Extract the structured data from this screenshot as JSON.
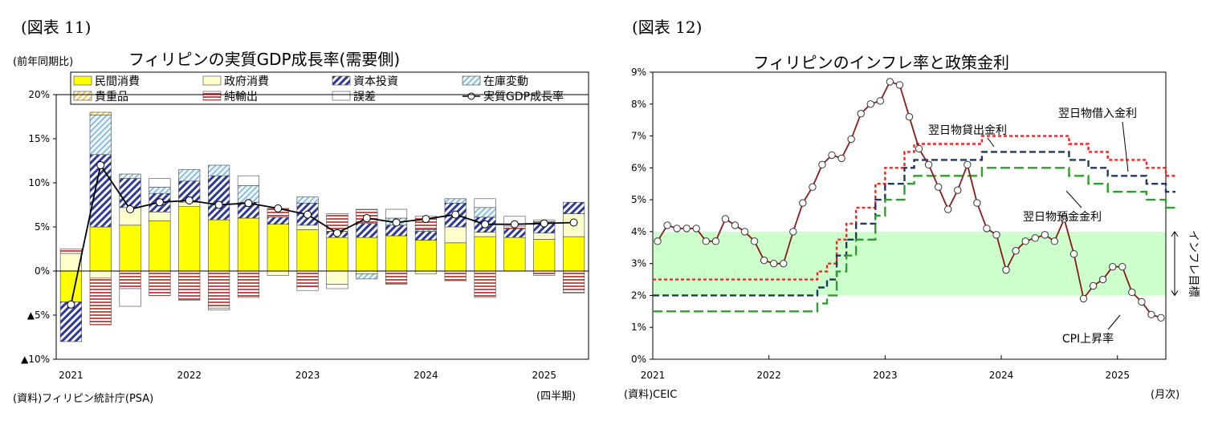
{
  "chart_data": [
    {
      "type": "bar",
      "figure_label": "(図表 11)",
      "title": "フィリピンの実質GDP成長率(需要側)",
      "ylabel": "(前年同期比)",
      "xlabel": "(四半期)",
      "source": "(資料)フィリピン統計庁(PSA)",
      "ylim": [
        -10,
        20
      ],
      "yticks": [
        {
          "v": 20,
          "label": "20%"
        },
        {
          "v": 15,
          "label": "15%"
        },
        {
          "v": 10,
          "label": "10%"
        },
        {
          "v": 5,
          "label": "5%"
        },
        {
          "v": 0,
          "label": "0%"
        },
        {
          "v": -5,
          "label": "▲5%"
        },
        {
          "v": -10,
          "label": "▲10%"
        }
      ],
      "xtick_labels": [
        {
          "i": 0,
          "label": "2021"
        },
        {
          "i": 4,
          "label": "2022"
        },
        {
          "i": 8,
          "label": "2023"
        },
        {
          "i": 12,
          "label": "2024"
        },
        {
          "i": 16,
          "label": "2025"
        }
      ],
      "categories": [
        "2021Q1",
        "2021Q2",
        "2021Q3",
        "2021Q4",
        "2022Q1",
        "2022Q2",
        "2022Q3",
        "2022Q4",
        "2023Q1",
        "2023Q2",
        "2023Q3",
        "2023Q4",
        "2024Q1",
        "2024Q2",
        "2024Q3",
        "2024Q4",
        "2025Q1",
        "2025Q2"
      ],
      "series": [
        {
          "name": "民間消費",
          "color": "#ffff00",
          "pattern": "solid",
          "values": [
            -3.5,
            5.0,
            5.2,
            5.7,
            7.3,
            5.8,
            6.0,
            5.3,
            4.7,
            3.8,
            3.8,
            4.0,
            3.5,
            3.2,
            3.9,
            3.8,
            3.6,
            3.9
          ]
        },
        {
          "name": "政府消費",
          "color": "#ffffcc",
          "pattern": "solid",
          "values": [
            2.0,
            -0.8,
            2.0,
            1.0,
            0.5,
            0.0,
            0.0,
            -0.5,
            0.5,
            -1.5,
            -0.3,
            0.0,
            -0.3,
            1.8,
            0.5,
            0.0,
            0.7,
            2.6
          ]
        },
        {
          "name": "資本投資",
          "color": "#2e3a99",
          "pattern": "diag",
          "values": [
            -4.5,
            8.2,
            3.3,
            2.1,
            2.4,
            5.0,
            1.8,
            0.8,
            2.5,
            0.7,
            1.6,
            1.2,
            1.0,
            2.7,
            1.7,
            1.0,
            1.2,
            1.3
          ]
        },
        {
          "name": "在庫変動",
          "color": "#7fb2d0",
          "pattern": "diag2",
          "values": [
            0.0,
            4.5,
            0.5,
            0.7,
            1.3,
            1.2,
            1.9,
            0.0,
            0.7,
            0.0,
            -0.6,
            0.8,
            0.2,
            0.5,
            1.1,
            0.0,
            0.1,
            0.0
          ]
        },
        {
          "name": "貴重品",
          "color": "#f2c84b",
          "pattern": "diag3",
          "values": [
            0.0,
            0.3,
            0.0,
            0.0,
            0.0,
            0.0,
            0.0,
            0.0,
            0.0,
            0.0,
            0.0,
            0.0,
            0.0,
            0.0,
            0.0,
            0.0,
            0.0,
            0.0
          ]
        },
        {
          "name": "純輸出",
          "color": "#c0504d",
          "pattern": "hstripe",
          "values": [
            0.5,
            -5.3,
            -2.0,
            -2.8,
            -3.3,
            -4.2,
            -3.0,
            1.0,
            -1.8,
            2.0,
            1.6,
            -1.5,
            1.5,
            -1.1,
            -3.0,
            0.3,
            -0.5,
            -2.4
          ]
        },
        {
          "name": "誤差",
          "color": "#ffffff",
          "pattern": "solid",
          "values": [
            0.0,
            0.0,
            -2.0,
            1.0,
            0.0,
            -0.2,
            1.1,
            0.0,
            -0.4,
            -0.5,
            0.0,
            1.0,
            0.0,
            0.0,
            1.0,
            1.1,
            0.2,
            -0.1
          ]
        }
      ],
      "line": {
        "name": "実質GDP成長率",
        "values": [
          -3.8,
          12.0,
          7.0,
          7.8,
          8.0,
          7.5,
          7.7,
          7.1,
          6.4,
          4.3,
          6.0,
          5.5,
          5.9,
          6.4,
          5.3,
          5.3,
          5.4,
          5.5
        ]
      }
    },
    {
      "type": "line",
      "figure_label": "(図表 12)",
      "title": "フィリピンのインフレ率と政策金利",
      "xlabel": "(月次)",
      "source": "(資料)CEIC",
      "ylim": [
        0,
        9
      ],
      "yticks": [
        {
          "v": 0,
          "label": "0%"
        },
        {
          "v": 1,
          "label": "1%"
        },
        {
          "v": 2,
          "label": "2%"
        },
        {
          "v": 3,
          "label": "3%"
        },
        {
          "v": 4,
          "label": "4%"
        },
        {
          "v": 5,
          "label": "5%"
        },
        {
          "v": 6,
          "label": "6%"
        },
        {
          "v": 7,
          "label": "7%"
        },
        {
          "v": 8,
          "label": "8%"
        },
        {
          "v": 9,
          "label": "9%"
        }
      ],
      "xtick_labels": [
        {
          "i": 0,
          "label": "2021"
        },
        {
          "i": 12,
          "label": "2022"
        },
        {
          "i": 24,
          "label": "2023"
        },
        {
          "i": 36,
          "label": "2024"
        },
        {
          "i": 48,
          "label": "2025"
        }
      ],
      "target_band": {
        "range": [
          2,
          4
        ],
        "label": "インフレ目標",
        "color": "#ccffcc"
      },
      "cpi": {
        "name": "CPI上昇率",
        "color": "#8b1a1a",
        "values": [
          3.7,
          4.2,
          4.1,
          4.1,
          4.1,
          3.7,
          3.7,
          4.4,
          4.2,
          4.0,
          3.7,
          3.1,
          3.0,
          3.0,
          4.0,
          4.9,
          5.4,
          6.1,
          6.4,
          6.3,
          6.9,
          7.7,
          8.0,
          8.1,
          8.7,
          8.6,
          7.6,
          6.6,
          6.1,
          5.4,
          4.7,
          5.3,
          6.1,
          4.9,
          4.1,
          3.9,
          2.8,
          3.4,
          3.7,
          3.8,
          3.9,
          3.7,
          4.4,
          3.3,
          1.9,
          2.3,
          2.5,
          2.9,
          2.9,
          2.1,
          1.8,
          1.4,
          1.3
        ]
      },
      "series": [
        {
          "name": "翌日物貸出金利",
          "color": "#ff2020",
          "dash": "4,3",
          "values": [
            2.5,
            2.5,
            2.5,
            2.5,
            2.5,
            2.5,
            2.5,
            2.5,
            2.5,
            2.5,
            2.5,
            2.5,
            2.5,
            2.5,
            2.5,
            2.5,
            2.5,
            2.75,
            3.0,
            3.75,
            4.25,
            4.75,
            4.75,
            5.5,
            6.0,
            6.0,
            6.5,
            6.75,
            6.75,
            6.75,
            6.75,
            6.75,
            6.75,
            6.75,
            7.0,
            7.0,
            7.0,
            7.0,
            7.0,
            7.0,
            7.0,
            7.0,
            7.0,
            6.75,
            6.75,
            6.5,
            6.5,
            6.25,
            6.25,
            6.25,
            6.25,
            6.0,
            6.0,
            5.75
          ]
        },
        {
          "name": "翌日物借入金利",
          "color": "#1f3864",
          "dash": "8,4",
          "values": [
            2.0,
            2.0,
            2.0,
            2.0,
            2.0,
            2.0,
            2.0,
            2.0,
            2.0,
            2.0,
            2.0,
            2.0,
            2.0,
            2.0,
            2.0,
            2.0,
            2.0,
            2.25,
            2.5,
            3.25,
            3.75,
            4.25,
            4.25,
            5.0,
            5.5,
            5.5,
            6.0,
            6.25,
            6.25,
            6.25,
            6.25,
            6.25,
            6.25,
            6.25,
            6.5,
            6.5,
            6.5,
            6.5,
            6.5,
            6.5,
            6.5,
            6.5,
            6.5,
            6.25,
            6.25,
            6.0,
            6.0,
            5.75,
            5.75,
            5.75,
            5.75,
            5.5,
            5.5,
            5.25
          ]
        },
        {
          "name": "翌日物預金金利",
          "color": "#2ca02c",
          "dash": "12,5",
          "values": [
            1.5,
            1.5,
            1.5,
            1.5,
            1.5,
            1.5,
            1.5,
            1.5,
            1.5,
            1.5,
            1.5,
            1.5,
            1.5,
            1.5,
            1.5,
            1.5,
            1.5,
            1.75,
            2.0,
            2.75,
            3.25,
            3.75,
            3.75,
            4.5,
            5.0,
            5.0,
            5.5,
            5.75,
            5.75,
            5.75,
            5.75,
            5.75,
            5.75,
            5.75,
            6.0,
            6.0,
            6.0,
            6.0,
            6.0,
            6.0,
            6.0,
            6.0,
            6.0,
            5.75,
            5.75,
            5.5,
            5.5,
            5.25,
            5.25,
            5.25,
            5.25,
            5.0,
            5.0,
            4.75
          ]
        }
      ]
    }
  ]
}
